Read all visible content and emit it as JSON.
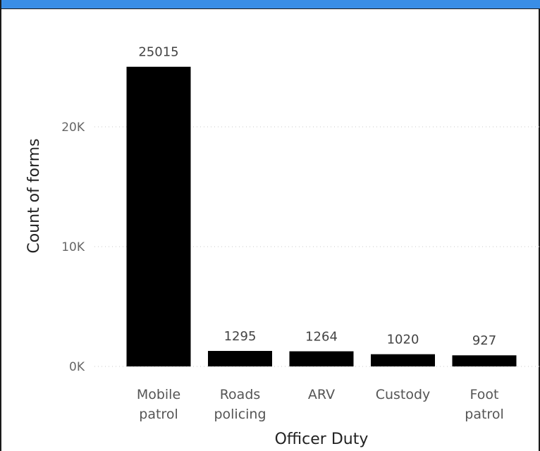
{
  "chart_data": {
    "type": "bar",
    "categories": [
      [
        "Mobile",
        "patrol"
      ],
      [
        "Roads",
        "policing"
      ],
      [
        "ARV"
      ],
      [
        "Custody"
      ],
      [
        "Foot",
        "patrol"
      ]
    ],
    "values": [
      25015,
      1295,
      1264,
      1020,
      927
    ],
    "data_labels": [
      "25015",
      "1295",
      "1264",
      "1020",
      "927"
    ],
    "xlabel": "Officer Duty",
    "ylabel": "Count of forms",
    "y_ticks": [
      {
        "value": 0,
        "label": "0K"
      },
      {
        "value": 10000,
        "label": "10K"
      },
      {
        "value": 20000,
        "label": "20K"
      }
    ],
    "ylim": [
      0,
      25000
    ],
    "grid": true,
    "legend": "none",
    "bar_color": "#000000",
    "header_color": "#3a8ee6"
  }
}
